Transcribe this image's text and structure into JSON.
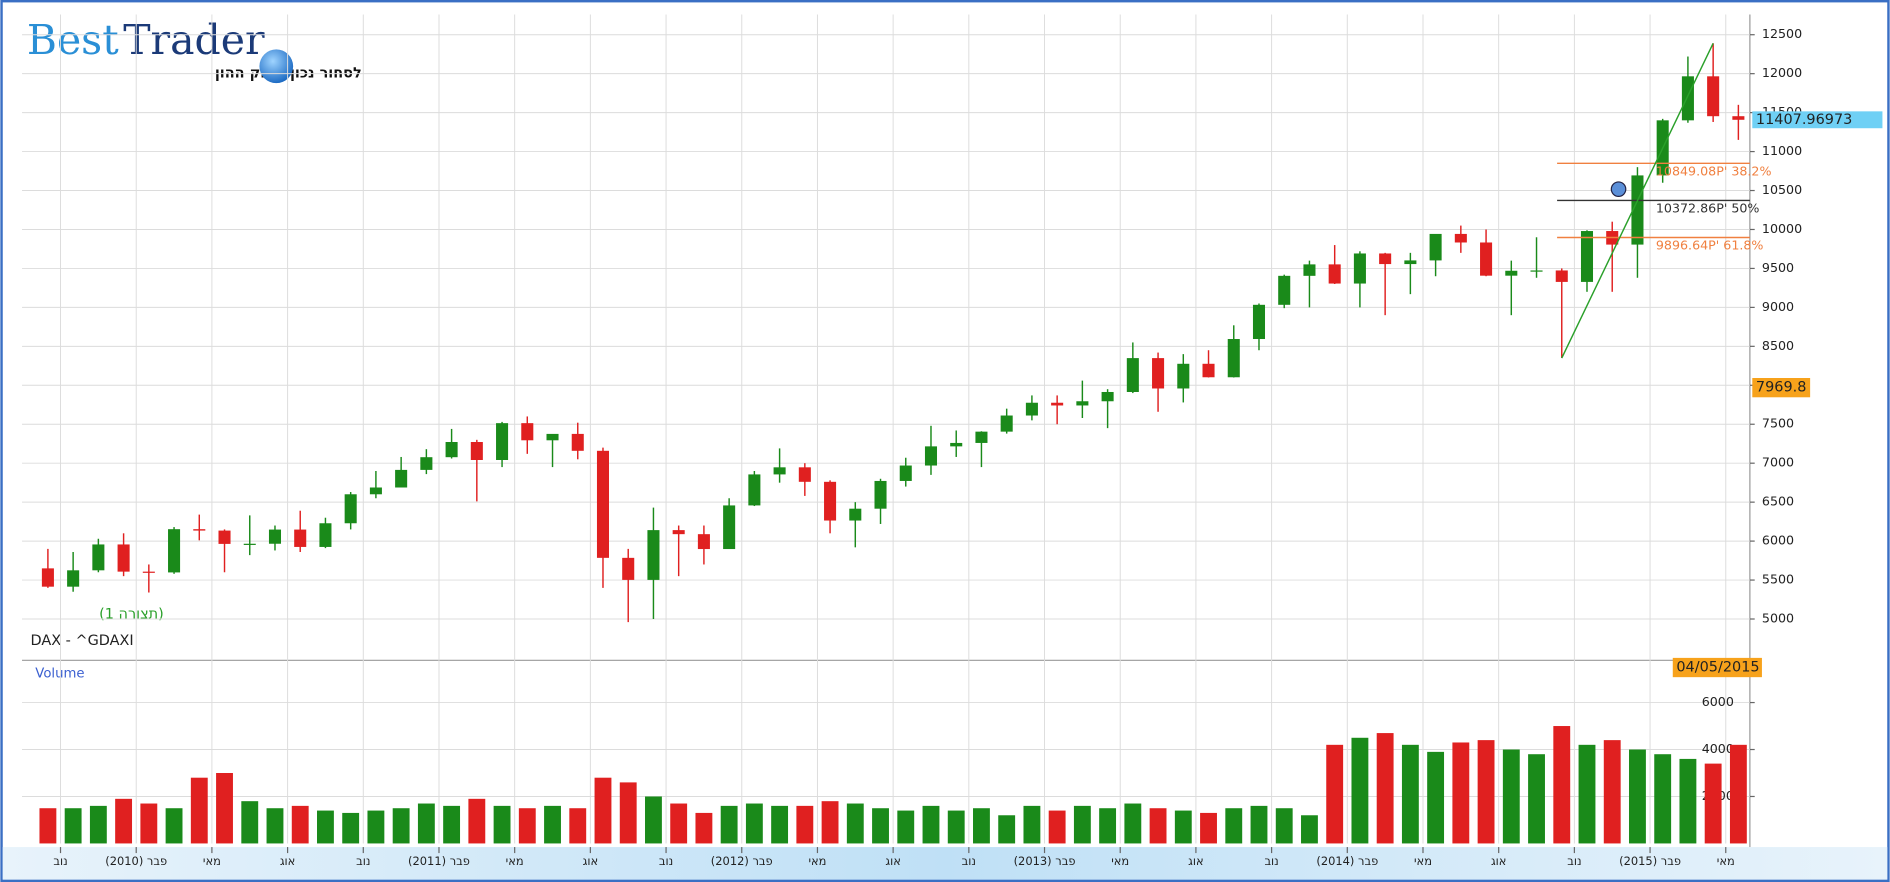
{
  "logo": {
    "brand_1": "Best",
    "brand_2": "Trader",
    "tagline": "לסחור נכון בשוק ההון"
  },
  "chart_data": {
    "type": "candlestick",
    "symbol": "DAX - ^GDAXI",
    "pattern": "(תצורה 1)",
    "up_color": "#1a8a1a",
    "down_color": "#e02020",
    "categories": [
      null,
      "נוב",
      null,
      null,
      "פבר (2010)",
      null,
      null,
      "מאי",
      null,
      null,
      "אוג",
      null,
      null,
      "נוב",
      null,
      null,
      "פבר (2011)",
      null,
      null,
      "מאי",
      null,
      null,
      "אוג",
      null,
      null,
      "נוב",
      null,
      null,
      "פבר (2012)",
      null,
      null,
      "מאי",
      null,
      null,
      "אוג",
      null,
      null,
      "נוב",
      null,
      null,
      "פבר (2013)",
      null,
      null,
      "מאי",
      null,
      null,
      "אוג",
      null,
      null,
      "נוב",
      null,
      null,
      "פבר (2014)",
      null,
      null,
      "מאי",
      null,
      null,
      "אוג",
      null,
      null,
      "נוב",
      null,
      null,
      "פבר (2015)",
      null,
      null,
      "מאי"
    ],
    "open": [
      5650,
      5415,
      5625,
      5957,
      5608,
      5598,
      6153,
      6135,
      5964,
      5966,
      6148,
      5925,
      6229,
      6601,
      6688,
      6914,
      7077,
      7272,
      7041,
      7514,
      7294,
      7376,
      7159,
      5785,
      5502,
      6141,
      6089,
      5898,
      6458,
      6856,
      6947,
      6761,
      6264,
      6416,
      6772,
      6970,
      7216,
      7260,
      7405,
      7612,
      7776,
      7741,
      7795,
      7914,
      8349,
      7959,
      8276,
      8103,
      8594,
      9033,
      9405,
      9552,
      9306,
      9692,
      9556,
      9603,
      9943,
      9833,
      9407,
      9470,
      9474,
      9327,
      9980,
      9806,
      10694,
      11401,
      11966,
      11454
    ],
    "high": [
      5900,
      5860,
      6030,
      6100,
      5700,
      6180,
      6340,
      6150,
      6330,
      6200,
      6390,
      6300,
      6630,
      6900,
      7080,
      7180,
      7440,
      7300,
      7530,
      7600,
      7330,
      7520,
      7200,
      5900,
      6430,
      6200,
      6200,
      6550,
      6900,
      7190,
      7000,
      6780,
      6500,
      6800,
      7070,
      7480,
      7420,
      7410,
      7700,
      7870,
      7870,
      8060,
      7950,
      8550,
      8420,
      8400,
      8450,
      8770,
      9050,
      9420,
      9600,
      9800,
      9720,
      9700,
      9700,
      9900,
      10050,
      10000,
      9600,
      9900,
      9500,
      9990,
      10100,
      10800,
      11420,
      12220,
      12390,
      11600
    ],
    "low": [
      5400,
      5350,
      5600,
      5550,
      5340,
      5580,
      6010,
      5600,
      5820,
      5880,
      5860,
      5910,
      6150,
      6550,
      6700,
      6860,
      7060,
      6510,
      6950,
      7120,
      6950,
      7050,
      5400,
      4960,
      5000,
      5550,
      5700,
      5900,
      6450,
      6750,
      6580,
      6100,
      5920,
      6220,
      6700,
      6850,
      7080,
      6950,
      7380,
      7550,
      7500,
      7580,
      7450,
      7900,
      7660,
      7780,
      8100,
      8100,
      8450,
      8990,
      9000,
      9300,
      9000,
      8900,
      9170,
      9400,
      9700,
      9400,
      8900,
      9380,
      8350,
      9200,
      9200,
      9380,
      10600,
      11370,
      11380,
      11150
    ],
    "close": [
      5415,
      5625,
      5957,
      5608,
      5598,
      6153,
      6135,
      5964,
      5966,
      6148,
      5925,
      6229,
      6601,
      6688,
      6914,
      7077,
      7272,
      7041,
      7514,
      7294,
      7376,
      7159,
      5785,
      5502,
      6141,
      6089,
      5898,
      6458,
      6856,
      6947,
      6761,
      6264,
      6416,
      6772,
      6970,
      7216,
      7260,
      7405,
      7612,
      7776,
      7741,
      7795,
      7914,
      8349,
      7959,
      8276,
      8103,
      8594,
      9033,
      9405,
      9552,
      9306,
      9692,
      9556,
      9603,
      9943,
      9833,
      9407,
      9470,
      9474,
      9327,
      9980,
      9806,
      10694,
      11401,
      11966,
      11454,
      11408
    ],
    "ylim": [
      4470,
      12760
    ],
    "yticks": [
      5000,
      5500,
      6000,
      6500,
      7000,
      7500,
      8000,
      8500,
      9000,
      9500,
      10000,
      10500,
      11000,
      11500,
      12000,
      12500
    ],
    "last_price": 11407.96973,
    "marker_price": 7969.8,
    "date": "04/05/2015",
    "fibonacci": [
      {
        "value": 10849.08,
        "label": "10849.08P' 38.2%",
        "color": "#f08040"
      },
      {
        "value": 10372.86,
        "label": "10372.86P' 50%",
        "color": "#333333"
      },
      {
        "value": 9896.64,
        "label": "9896.64P' 61.8%",
        "color": "#f08040"
      }
    ],
    "trendline": {
      "x": [
        60,
        66
      ],
      "y": [
        8350,
        12390
      ],
      "color": "#2aa02a"
    },
    "volume": {
      "title": "Volume",
      "values": [
        1500,
        1500,
        1600,
        1900,
        1700,
        1500,
        2800,
        3000,
        1800,
        1500,
        1600,
        1400,
        1300,
        1400,
        1500,
        1700,
        1600,
        1900,
        1600,
        1500,
        1600,
        1500,
        2800,
        2600,
        2000,
        1700,
        1300,
        1600,
        1700,
        1600,
        1600,
        1800,
        1700,
        1500,
        1400,
        1600,
        1400,
        1500,
        1200,
        1600,
        1400,
        1600,
        1500,
        1700,
        1500,
        1400,
        1300,
        1500,
        1600,
        1500,
        1200,
        4200,
        4500,
        4700,
        4200,
        3900,
        4300,
        4400,
        4000,
        3800,
        5000,
        4200,
        4400,
        4000,
        3800,
        3600,
        3400,
        4200
      ],
      "ylim": [
        0,
        7800
      ],
      "yticks": [
        2000,
        4000,
        6000
      ]
    }
  }
}
